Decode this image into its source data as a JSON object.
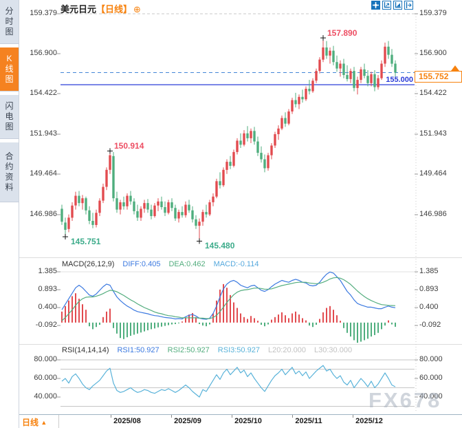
{
  "title": {
    "symbol": "美元日元",
    "period_tag": "【日线】",
    "plus_icon": "⊕"
  },
  "toolbar": {
    "icons": [
      "crosshair",
      "axis-zoom",
      "axis-zoom-filled",
      "pan-right"
    ]
  },
  "sidebar": {
    "items": [
      {
        "label": "分时图",
        "active": false
      },
      {
        "label": "K线图",
        "active": true
      },
      {
        "label": "闪电图",
        "active": false
      },
      {
        "label": "合约资料",
        "active": false
      }
    ]
  },
  "bottom_bar": {
    "period_label": "日线",
    "up_arrow": "▲"
  },
  "watermark": "FX678",
  "colors": {
    "up": "#e24b4f",
    "down": "#4fae7e",
    "ann_high": "#ed4e63",
    "ann_low": "#3cab8a",
    "diff_line": "#3b79e0",
    "dea_line": "#53ad7e",
    "macd_value": "#55a8dd",
    "rsi_line": "#58b2d9",
    "ref_gray": "#c2c2c2",
    "text_dark": "#333333",
    "orange": "#f7820e",
    "blue_solid_line": "#2a3cd8",
    "blue_dashed_line": "#4285d6"
  },
  "chart_data": {
    "type": "candlestick",
    "symbol": "美元日元",
    "period": "日线",
    "y_axis_labels": [
      "159.379",
      "156.900",
      "154.422",
      "151.943",
      "149.464",
      "146.986"
    ],
    "x_axis_labels": [
      "2025/08",
      "2025/09",
      "2025/10",
      "2025/11",
      "2025/12"
    ],
    "last_price": "155.752",
    "horizontal_lines": {
      "dashed_price": 155.752,
      "solid_price": 155.0,
      "solid_label": "155.000"
    },
    "annotations": [
      {
        "text": "157.890",
        "index": 76,
        "type": "high"
      },
      {
        "text": "150.914",
        "index": 14,
        "type": "high"
      },
      {
        "text": "145.751",
        "index": 1,
        "type": "low"
      },
      {
        "text": "145.480",
        "index": 40,
        "type": "low"
      }
    ],
    "candles": [
      [
        147.35,
        147.6,
        146.35,
        146.55
      ],
      [
        146.5,
        146.8,
        145.751,
        146.05
      ],
      [
        146.1,
        147.0,
        145.9,
        146.8
      ],
      [
        146.8,
        147.75,
        146.6,
        147.55
      ],
      [
        147.55,
        148.4,
        147.3,
        148.15
      ],
      [
        148.15,
        148.45,
        147.5,
        147.7
      ],
      [
        147.7,
        148.2,
        147.3,
        148.0
      ],
      [
        148.0,
        148.1,
        147.0,
        147.25
      ],
      [
        147.25,
        147.5,
        146.4,
        146.6
      ],
      [
        146.6,
        147.1,
        146.15,
        146.35
      ],
      [
        146.35,
        147.3,
        146.2,
        147.1
      ],
      [
        147.1,
        148.0,
        146.9,
        147.85
      ],
      [
        147.85,
        148.9,
        147.7,
        148.7
      ],
      [
        148.7,
        149.9,
        148.5,
        149.75
      ],
      [
        149.75,
        150.914,
        149.5,
        150.65
      ],
      [
        150.6,
        150.85,
        147.8,
        148.0
      ],
      [
        148.0,
        148.4,
        147.1,
        147.3
      ],
      [
        147.3,
        147.9,
        147.0,
        147.75
      ],
      [
        147.75,
        148.1,
        147.3,
        147.5
      ],
      [
        147.5,
        148.3,
        147.3,
        148.15
      ],
      [
        148.15,
        148.45,
        147.6,
        147.8
      ],
      [
        147.8,
        148.0,
        147.0,
        147.2
      ],
      [
        147.2,
        147.6,
        146.6,
        146.8
      ],
      [
        146.8,
        147.5,
        146.6,
        147.35
      ],
      [
        147.35,
        147.9,
        147.1,
        147.7
      ],
      [
        147.7,
        147.95,
        147.1,
        147.3
      ],
      [
        147.3,
        147.6,
        146.7,
        146.9
      ],
      [
        146.9,
        147.7,
        146.8,
        147.55
      ],
      [
        147.55,
        148.0,
        147.2,
        147.8
      ],
      [
        147.8,
        148.1,
        147.3,
        147.45
      ],
      [
        147.45,
        147.8,
        146.9,
        147.1
      ],
      [
        147.1,
        147.9,
        147.0,
        147.75
      ],
      [
        147.75,
        148.0,
        147.2,
        147.4
      ],
      [
        147.4,
        147.6,
        146.6,
        146.75
      ],
      [
        146.75,
        147.3,
        146.5,
        147.15
      ],
      [
        147.15,
        147.5,
        146.8,
        146.95
      ],
      [
        146.95,
        147.8,
        146.8,
        147.6
      ],
      [
        147.6,
        147.9,
        147.1,
        147.25
      ],
      [
        147.25,
        147.5,
        146.5,
        146.7
      ],
      [
        146.7,
        146.95,
        146.1,
        146.3
      ],
      [
        146.3,
        146.75,
        145.48,
        146.55
      ],
      [
        146.55,
        147.3,
        146.3,
        147.15
      ],
      [
        147.15,
        147.6,
        146.8,
        147.0
      ],
      [
        147.0,
        147.9,
        146.9,
        147.75
      ],
      [
        147.75,
        148.3,
        147.5,
        148.1
      ],
      [
        148.1,
        149.2,
        148.0,
        149.05
      ],
      [
        149.05,
        149.6,
        148.6,
        148.8
      ],
      [
        148.8,
        149.9,
        148.7,
        149.75
      ],
      [
        149.75,
        150.4,
        149.5,
        150.25
      ],
      [
        150.25,
        150.6,
        149.8,
        150.0
      ],
      [
        150.0,
        151.0,
        149.9,
        150.85
      ],
      [
        150.85,
        151.7,
        150.7,
        151.55
      ],
      [
        151.55,
        152.0,
        151.1,
        151.3
      ],
      [
        151.3,
        152.2,
        151.2,
        152.0
      ],
      [
        152.0,
        152.45,
        151.5,
        151.7
      ],
      [
        151.7,
        152.3,
        151.4,
        152.15
      ],
      [
        152.15,
        152.4,
        151.3,
        151.5
      ],
      [
        151.5,
        151.8,
        150.6,
        150.8
      ],
      [
        150.8,
        151.2,
        150.2,
        150.4
      ],
      [
        150.4,
        150.7,
        149.6,
        149.85
      ],
      [
        149.85,
        150.8,
        149.7,
        150.65
      ],
      [
        150.65,
        151.4,
        150.4,
        151.25
      ],
      [
        151.25,
        152.1,
        151.1,
        151.95
      ],
      [
        151.95,
        152.5,
        151.6,
        152.3
      ],
      [
        152.3,
        153.1,
        152.2,
        152.95
      ],
      [
        152.95,
        153.3,
        152.4,
        152.6
      ],
      [
        152.6,
        153.5,
        152.5,
        153.35
      ],
      [
        153.35,
        154.2,
        153.2,
        154.05
      ],
      [
        154.05,
        154.5,
        153.6,
        153.8
      ],
      [
        153.8,
        154.4,
        153.5,
        154.25
      ],
      [
        154.25,
        154.7,
        153.9,
        154.1
      ],
      [
        154.1,
        154.9,
        154.0,
        154.75
      ],
      [
        154.75,
        155.3,
        154.4,
        154.6
      ],
      [
        154.6,
        155.4,
        154.5,
        155.25
      ],
      [
        155.25,
        156.0,
        155.1,
        155.85
      ],
      [
        155.85,
        156.7,
        155.7,
        156.55
      ],
      [
        156.55,
        157.89,
        156.4,
        157.3
      ],
      [
        157.3,
        157.7,
        156.6,
        156.8
      ],
      [
        156.8,
        157.3,
        156.3,
        157.1
      ],
      [
        157.1,
        157.4,
        156.2,
        156.4
      ],
      [
        156.4,
        156.8,
        155.8,
        156.0
      ],
      [
        156.0,
        156.5,
        155.5,
        156.3
      ],
      [
        156.3,
        156.6,
        155.4,
        155.6
      ],
      [
        155.6,
        156.2,
        155.2,
        155.35
      ],
      [
        155.35,
        156.0,
        155.1,
        155.85
      ],
      [
        155.85,
        156.1,
        154.6,
        154.8
      ],
      [
        154.8,
        155.5,
        154.4,
        155.3
      ],
      [
        155.3,
        156.1,
        155.1,
        155.95
      ],
      [
        155.95,
        156.3,
        155.4,
        155.55
      ],
      [
        155.55,
        155.9,
        154.9,
        155.1
      ],
      [
        155.1,
        155.8,
        154.9,
        155.65
      ],
      [
        155.65,
        155.9,
        154.6,
        154.85
      ],
      [
        154.85,
        155.6,
        154.7,
        155.4
      ],
      [
        155.4,
        156.5,
        155.3,
        156.3
      ],
      [
        156.3,
        157.6,
        156.1,
        157.35
      ],
      [
        157.35,
        157.7,
        156.6,
        156.85
      ],
      [
        156.85,
        157.2,
        156.1,
        156.3
      ],
      [
        156.3,
        156.5,
        155.5,
        155.752
      ]
    ],
    "macd": {
      "header": [
        {
          "t": "MACD(26,12,9)",
          "c": "text_dark"
        },
        {
          "t": "DIFF:0.405",
          "c": "diff_line"
        },
        {
          "t": "DEA:0.462",
          "c": "dea_line"
        },
        {
          "t": "MACD:-0.114",
          "c": "macd_value"
        }
      ],
      "y_axis_labels": [
        "1.385",
        "0.893",
        "0.400",
        "-0.092"
      ],
      "diff": [
        0.35,
        0.5,
        0.65,
        0.8,
        0.95,
        1.02,
        0.95,
        0.85,
        0.75,
        0.72,
        0.78,
        0.88,
        0.98,
        1.05,
        1.02,
        0.85,
        0.7,
        0.6,
        0.52,
        0.45,
        0.4,
        0.34,
        0.3,
        0.28,
        0.26,
        0.24,
        0.21,
        0.19,
        0.18,
        0.16,
        0.14,
        0.13,
        0.12,
        0.1,
        0.11,
        0.1,
        0.16,
        0.2,
        0.22,
        0.18,
        0.12,
        0.1,
        0.09,
        0.12,
        0.25,
        0.45,
        0.7,
        0.92,
        1.05,
        1.12,
        1.15,
        1.1,
        1.02,
        0.98,
        0.95,
        1.0,
        1.02,
        0.95,
        0.88,
        0.85,
        0.9,
        0.98,
        1.05,
        1.1,
        1.15,
        1.12,
        1.1,
        1.15,
        1.18,
        1.15,
        1.1,
        1.08,
        1.02,
        1.0,
        1.02,
        1.1,
        1.22,
        1.32,
        1.38,
        1.35,
        1.25,
        1.15,
        1.0,
        0.85,
        0.75,
        0.62,
        0.52,
        0.48,
        0.45,
        0.42,
        0.42,
        0.4,
        0.38,
        0.38,
        0.42,
        0.45,
        0.42,
        0.405
      ],
      "dea": [
        0.05,
        0.14,
        0.24,
        0.35,
        0.47,
        0.58,
        0.65,
        0.69,
        0.7,
        0.7,
        0.72,
        0.75,
        0.79,
        0.84,
        0.88,
        0.87,
        0.84,
        0.79,
        0.74,
        0.68,
        0.62,
        0.57,
        0.51,
        0.46,
        0.41,
        0.37,
        0.33,
        0.29,
        0.26,
        0.24,
        0.21,
        0.19,
        0.18,
        0.16,
        0.15,
        0.13,
        0.13,
        0.13,
        0.13,
        0.13,
        0.12,
        0.12,
        0.11,
        0.11,
        0.14,
        0.2,
        0.3,
        0.42,
        0.55,
        0.66,
        0.76,
        0.83,
        0.87,
        0.89,
        0.9,
        0.92,
        0.94,
        0.94,
        0.93,
        0.91,
        0.91,
        0.92,
        0.95,
        0.98,
        1.01,
        1.03,
        1.05,
        1.07,
        1.09,
        1.1,
        1.1,
        1.1,
        1.08,
        1.07,
        1.06,
        1.07,
        1.1,
        1.14,
        1.19,
        1.22,
        1.23,
        1.21,
        1.17,
        1.11,
        1.04,
        0.95,
        0.86,
        0.78,
        0.71,
        0.65,
        0.6,
        0.56,
        0.52,
        0.49,
        0.48,
        0.47,
        0.465,
        0.462
      ],
      "hist": [
        0.3,
        0.45,
        0.6,
        0.72,
        0.8,
        0.65,
        0.5,
        0.35,
        -0.1,
        -0.18,
        -0.12,
        -0.06,
        0.15,
        0.3,
        0.38,
        -0.15,
        -0.3,
        -0.42,
        -0.45,
        -0.4,
        -0.36,
        -0.33,
        -0.3,
        -0.27,
        -0.24,
        -0.21,
        -0.18,
        -0.16,
        -0.13,
        -0.11,
        -0.09,
        -0.07,
        -0.05,
        -0.04,
        -0.02,
        0.03,
        0.12,
        0.22,
        0.26,
        0.15,
        -0.04,
        -0.08,
        -0.1,
        -0.05,
        0.25,
        0.6,
        0.9,
        1.05,
        0.95,
        0.75,
        0.55,
        0.4,
        0.25,
        0.15,
        0.1,
        0.18,
        0.12,
        0.05,
        -0.06,
        -0.1,
        -0.05,
        0.08,
        0.15,
        0.22,
        0.28,
        0.2,
        0.12,
        0.25,
        0.3,
        0.22,
        0.12,
        0.06,
        -0.08,
        -0.12,
        -0.06,
        0.1,
        0.28,
        0.4,
        0.45,
        0.35,
        0.2,
        0.05,
        -0.15,
        -0.28,
        -0.38,
        -0.48,
        -0.55,
        -0.52,
        -0.48,
        -0.44,
        -0.38,
        -0.34,
        -0.28,
        -0.18,
        -0.08,
        0.06,
        -0.05,
        -0.114
      ]
    },
    "rsi": {
      "header": [
        {
          "t": "RSI(14,14,14)",
          "c": "text_dark"
        },
        {
          "t": "RSI1:50.927",
          "c": "diff_line"
        },
        {
          "t": "RSI2:50.927",
          "c": "dea_line"
        },
        {
          "t": "RSI3:50.927",
          "c": "rsi_line"
        },
        {
          "t": "L20:20.000",
          "c": "ref_gray"
        },
        {
          "t": "L30:30.000",
          "c": "ref_gray"
        }
      ],
      "y_axis_labels": [
        "80.000",
        "60.000",
        "40.000"
      ],
      "ref_lines": [
        80,
        70,
        50,
        30
      ],
      "values": [
        57,
        60,
        55,
        62,
        65,
        60,
        54,
        50,
        48,
        52,
        55,
        58,
        63,
        68,
        71,
        55,
        47,
        45,
        46,
        48,
        50,
        47,
        45,
        46,
        48,
        47,
        45,
        44,
        46,
        48,
        47,
        49,
        47,
        45,
        47,
        50,
        53,
        50,
        46,
        43,
        40,
        48,
        46,
        52,
        58,
        64,
        59,
        66,
        70,
        64,
        68,
        72,
        66,
        69,
        62,
        66,
        60,
        55,
        50,
        46,
        52,
        58,
        63,
        66,
        70,
        64,
        68,
        72,
        65,
        68,
        63,
        67,
        60,
        64,
        68,
        71,
        74,
        68,
        70,
        64,
        60,
        63,
        56,
        53,
        58,
        50,
        55,
        60,
        56,
        51,
        57,
        50,
        54,
        60,
        66,
        60,
        53,
        51
      ]
    }
  }
}
